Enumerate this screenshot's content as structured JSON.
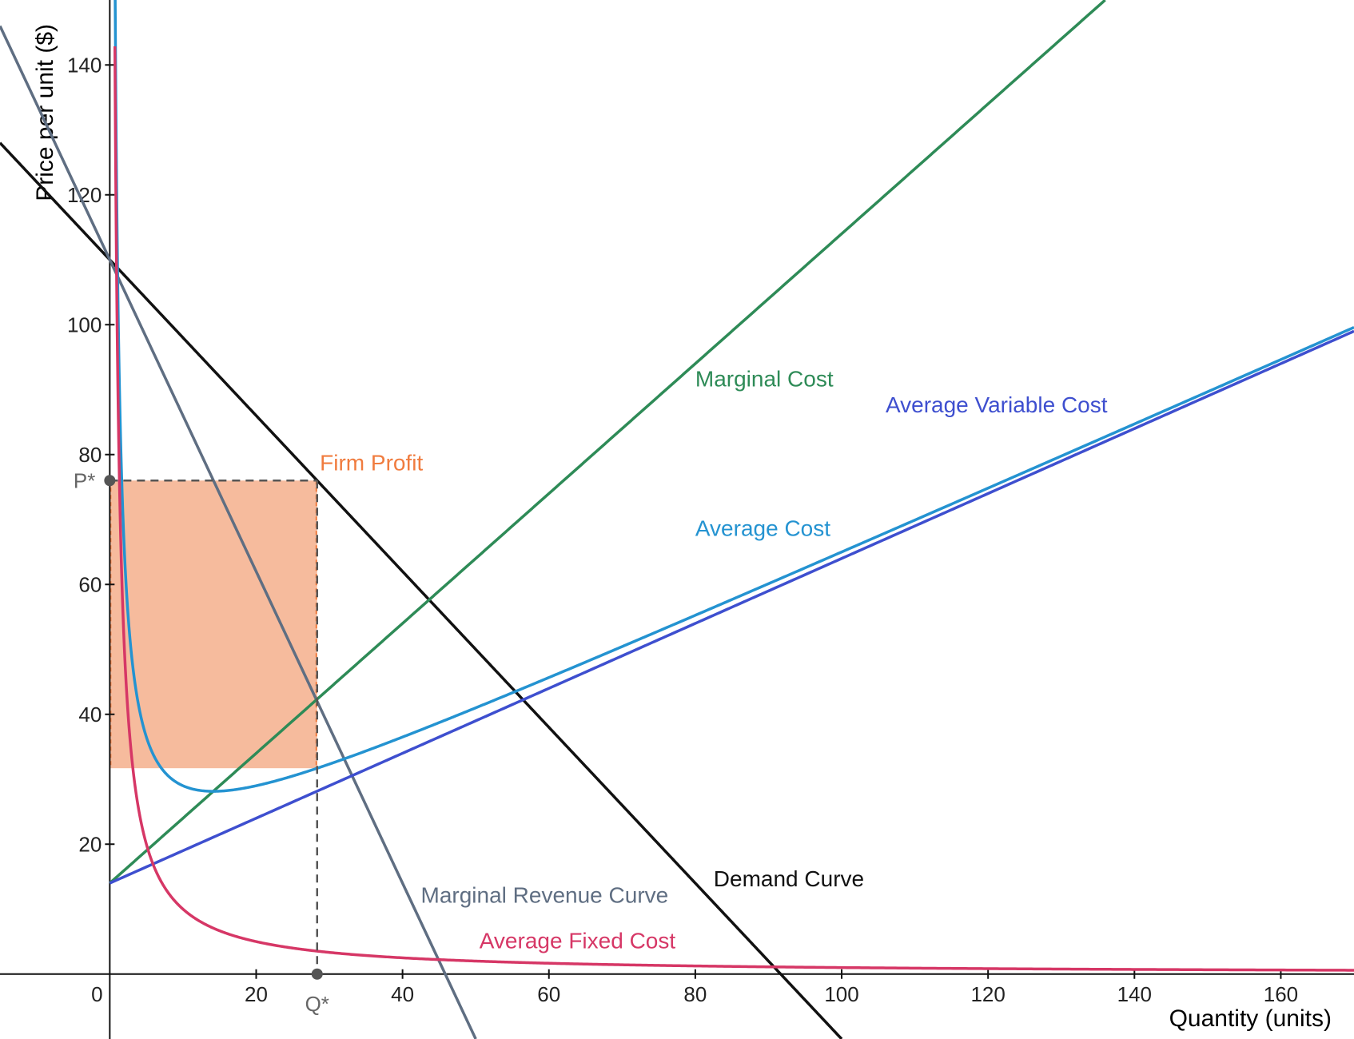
{
  "chart_data": {
    "type": "line",
    "xlabel": "Quantity (units)",
    "ylabel": "Price per unit ($)",
    "xlim": [
      -15,
      170
    ],
    "ylim": [
      -10,
      150
    ],
    "x_ticks": [
      0,
      20,
      40,
      60,
      80,
      100,
      120,
      140,
      160
    ],
    "y_ticks": [
      20,
      40,
      60,
      80,
      100,
      120,
      140
    ],
    "grid": false,
    "series": [
      {
        "name": "Demand Curve",
        "color": "#111111",
        "formula": "110 - 1.2*q",
        "sample_x": [
          -15,
          0,
          28.33,
          56.5,
          91.67,
          100
        ],
        "sample_y": [
          128,
          110,
          76,
          42.2,
          0,
          -10
        ]
      },
      {
        "name": "Marginal Revenue Curve",
        "color": "#5f6e82",
        "formula": "110 - 2.4*q",
        "sample_x": [
          -15,
          0,
          28.33,
          45.83,
          50
        ],
        "sample_y": [
          146,
          110,
          42,
          0,
          -10
        ]
      },
      {
        "name": "Marginal Cost",
        "color": "#2e8b57",
        "formula": "14 + q",
        "sample_x": [
          0,
          28.33,
          43.5,
          80,
          136
        ],
        "sample_y": [
          14,
          42.3,
          57.5,
          94,
          150
        ]
      },
      {
        "name": "Average Variable Cost",
        "color": "#3e4fcf",
        "formula": "14 + 0.5*q",
        "sample_x": [
          0,
          28.33,
          100,
          170
        ],
        "sample_y": [
          14,
          28.2,
          64,
          99
        ]
      },
      {
        "name": "Average Cost",
        "color": "#2493d1",
        "formula": "14 + 0.5*q + 100/q",
        "sample_x": [
          0.7,
          2,
          14.14,
          28.33,
          100,
          170
        ],
        "sample_y": [
          157,
          116,
          28.1,
          31.7,
          65,
          99.6
        ]
      },
      {
        "name": "Average Fixed Cost",
        "color": "#d63766",
        "formula": "100/q",
        "sample_x": [
          0.7,
          2,
          5,
          28.33,
          100,
          170
        ],
        "sample_y": [
          142.9,
          50,
          20,
          3.5,
          1,
          0.6
        ]
      }
    ],
    "points": [
      {
        "label": "P*",
        "x": 0,
        "y": 76
      },
      {
        "label": "Q*",
        "x": 28.33,
        "y": 0
      }
    ],
    "profit_region": {
      "label": "Firm Profit",
      "x": [
        0,
        28.33
      ],
      "y": [
        31.7,
        76
      ],
      "color": "#f6bb9d"
    },
    "annotations": [
      {
        "text": "Marginal Cost",
        "x": 80,
        "y": 90.5,
        "color": "#2e8b57"
      },
      {
        "text": "Average Variable Cost",
        "x": 106,
        "y": 86.5,
        "color": "#3e4fcf"
      },
      {
        "text": "Average Cost",
        "x": 80,
        "y": 67.5,
        "color": "#2493d1"
      },
      {
        "text": "Firm Profit",
        "x": 28.7,
        "y": 77.6,
        "color": "#f07c3f"
      },
      {
        "text": "Demand Curve",
        "x": 82.5,
        "y": 13.5,
        "color": "#111111"
      },
      {
        "text": "Marginal Revenue Curve",
        "x": 42.5,
        "y": 11,
        "color": "#5f6e82"
      },
      {
        "text": "Average Fixed Cost",
        "x": 50.5,
        "y": 4,
        "color": "#d63766"
      }
    ]
  }
}
